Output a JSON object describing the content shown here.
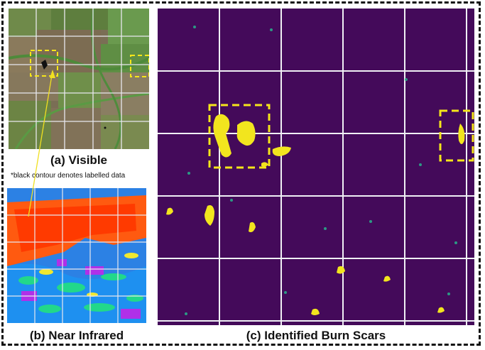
{
  "figure": {
    "panels": [
      {
        "id": "a",
        "caption": "(a) Visible"
      },
      {
        "id": "b",
        "caption": "(b) Near Infrared"
      },
      {
        "id": "c",
        "caption": "(c) Identified Burn Scars"
      }
    ],
    "note": "*black contour denotes labelled data",
    "colors": {
      "burn_scar": "#f2e51e",
      "background_purple": "#440a5a",
      "grid": "#f0f0f5",
      "highlight_box": "#f5e61a",
      "annotation_arrow": "#f0e020"
    }
  }
}
